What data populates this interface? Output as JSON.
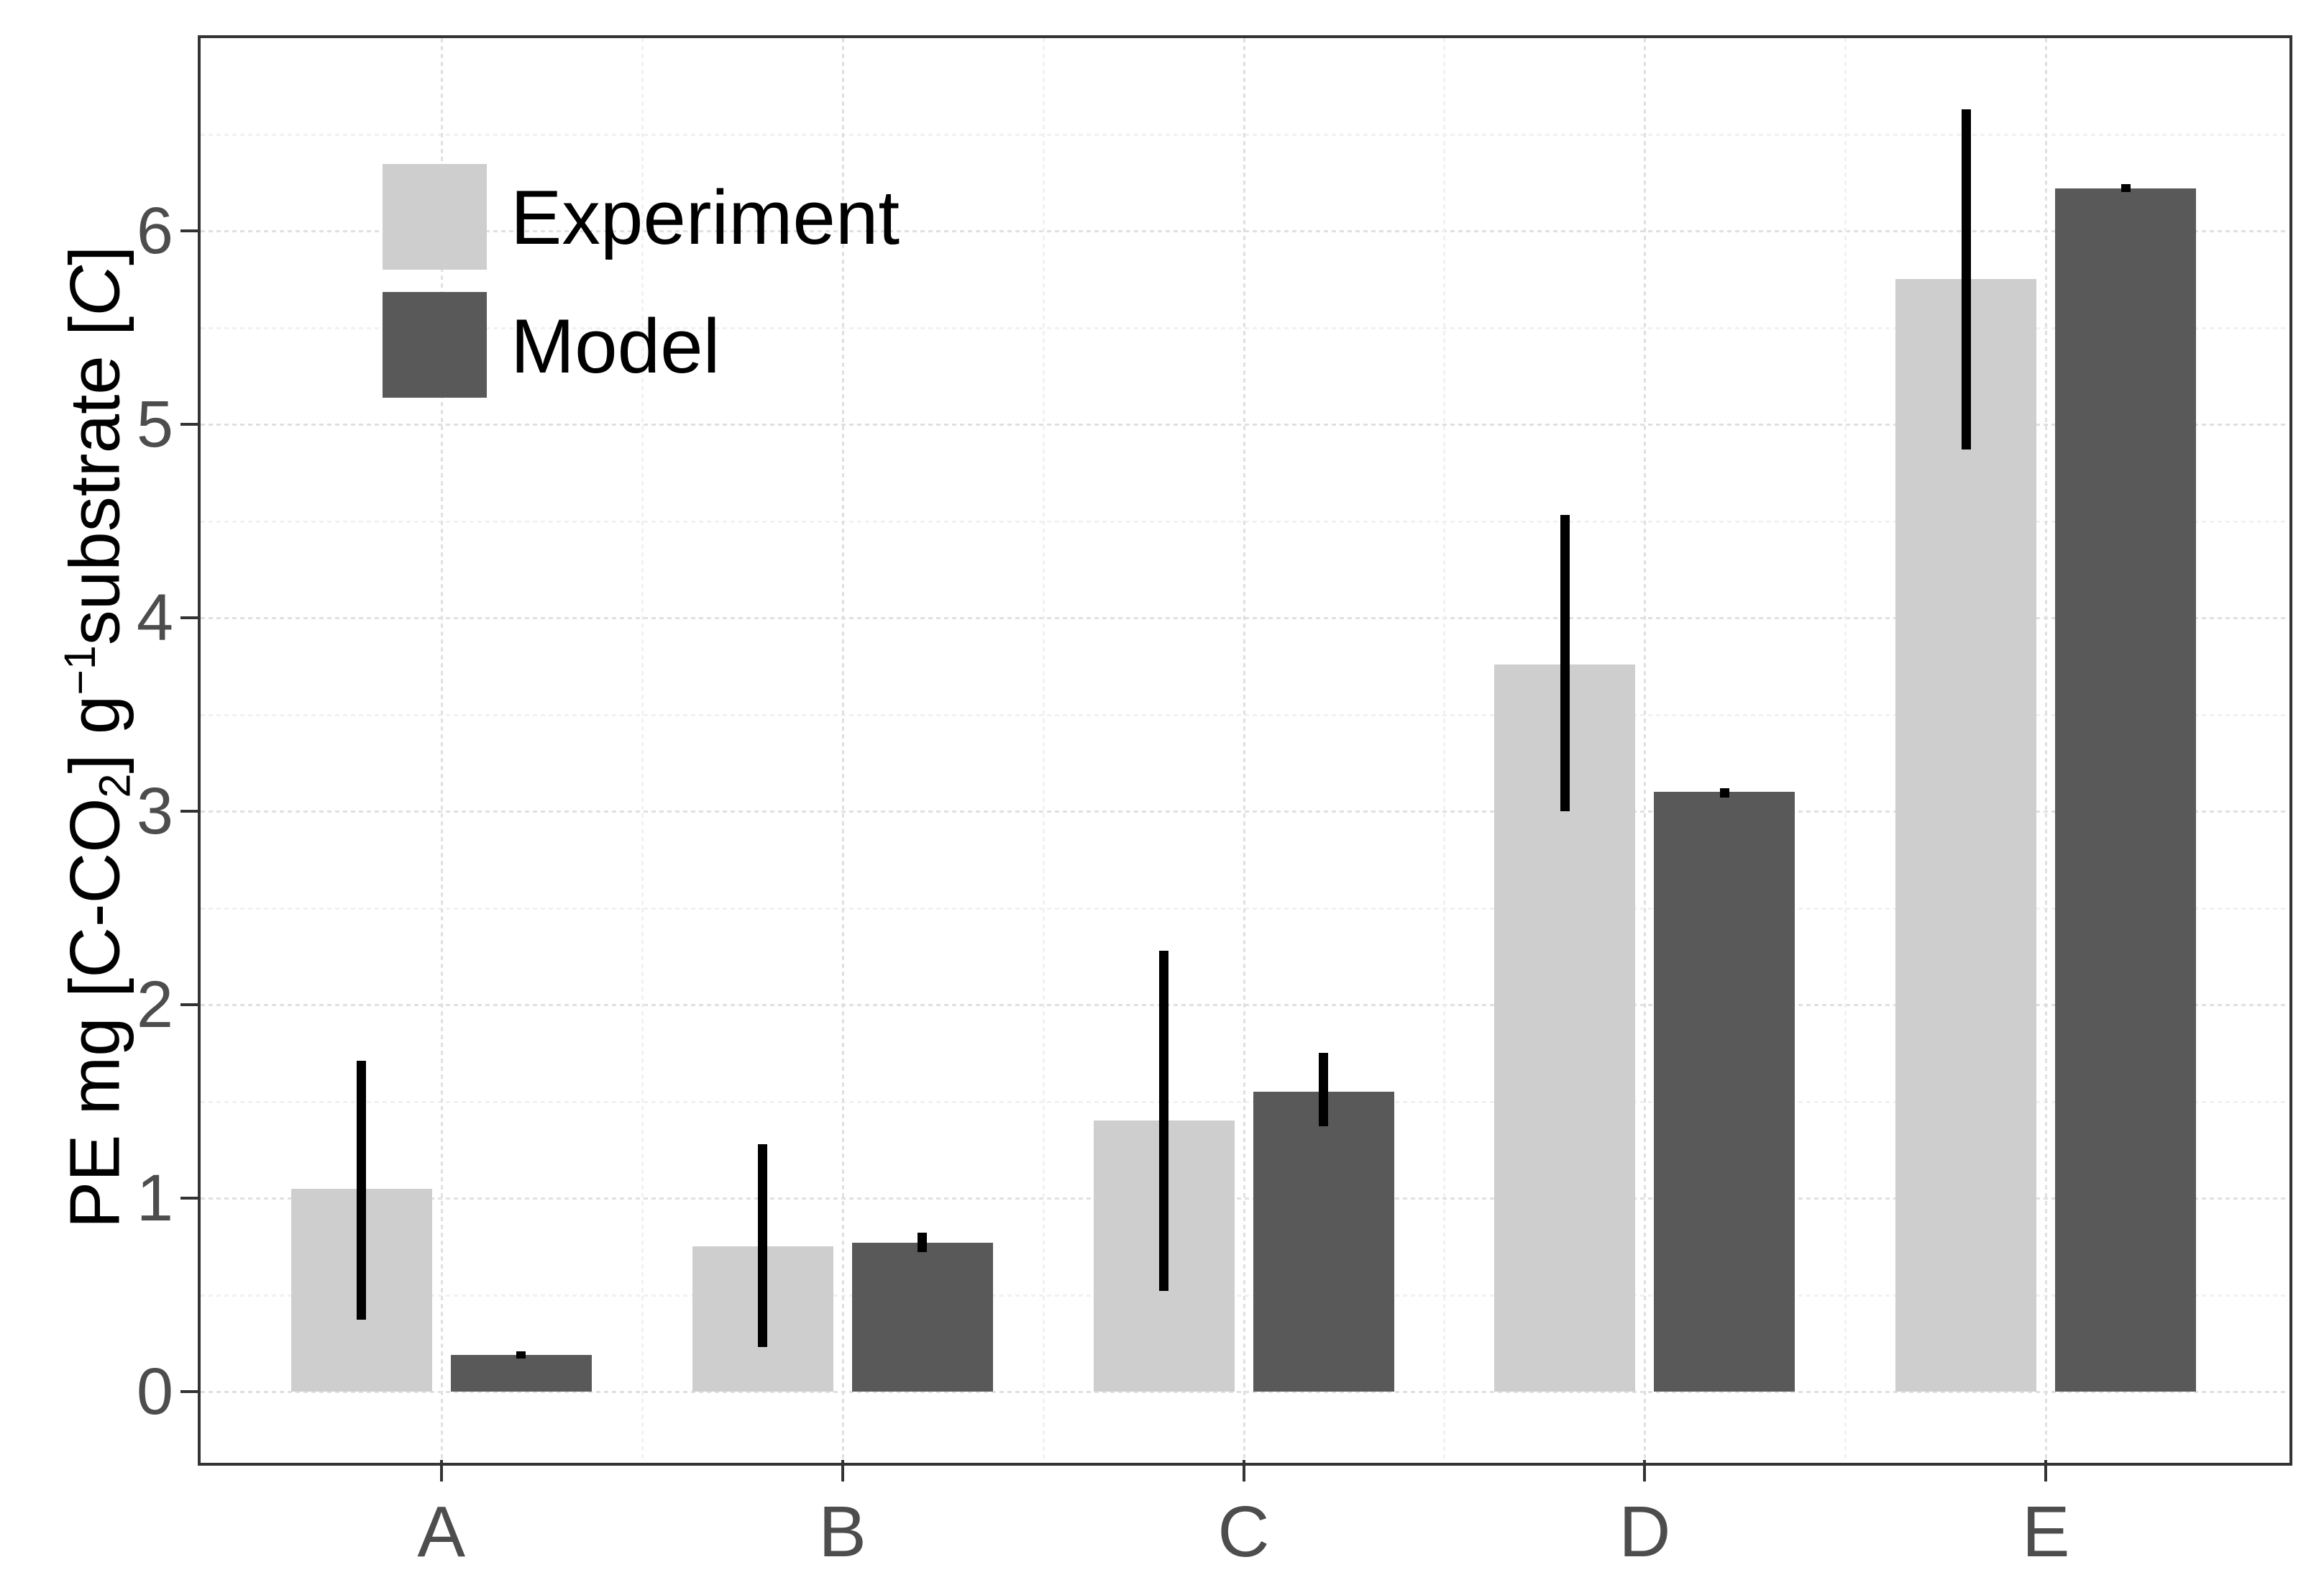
{
  "chart_data": {
    "type": "bar",
    "title": "",
    "xlabel": "",
    "ylabel": "PE mg [C-CO2] g-1 substrate [C]",
    "ylabel_segments": [
      {
        "t": "PE mg [C-CO",
        "style": "normal"
      },
      {
        "t": "2",
        "style": "sub"
      },
      {
        "t": "] g",
        "style": "normal"
      },
      {
        "t": "−1",
        "style": "sup"
      },
      {
        "t": "substrate [",
        "style": "normal"
      },
      {
        "t": "C",
        "style": "italic"
      },
      {
        "t": "]",
        "style": "normal"
      }
    ],
    "categories": [
      "A",
      "B",
      "C",
      "D",
      "E"
    ],
    "series": [
      {
        "name": "Experiment",
        "color": "#cecece",
        "values": [
          1.05,
          0.75,
          1.4,
          3.76,
          5.75
        ],
        "error_low": [
          0.37,
          0.23,
          0.52,
          3.0,
          4.87
        ],
        "error_high": [
          1.71,
          1.28,
          2.28,
          4.53,
          6.63
        ]
      },
      {
        "name": "Model",
        "color": "#595959",
        "values": [
          0.19,
          0.77,
          1.55,
          3.1,
          6.22
        ],
        "error_low": [
          0.17,
          0.72,
          1.37,
          3.07,
          6.2
        ],
        "error_high": [
          0.21,
          0.82,
          1.75,
          3.12,
          6.24
        ]
      }
    ],
    "yticks": [
      0,
      1,
      2,
      3,
      4,
      5,
      6
    ],
    "minor_ticks": [
      0.5,
      1.5,
      2.5,
      3.5,
      4.5,
      5.5,
      6.5
    ],
    "ylim": [
      -0.35,
      7.0
    ],
    "grid": "major and minor dotted, horizontal and vertical",
    "legend_position": "inside top-left",
    "error_bar_color": "#000000",
    "axis_text_color": "#4d4d4d",
    "panel_border_color": "#333333"
  }
}
